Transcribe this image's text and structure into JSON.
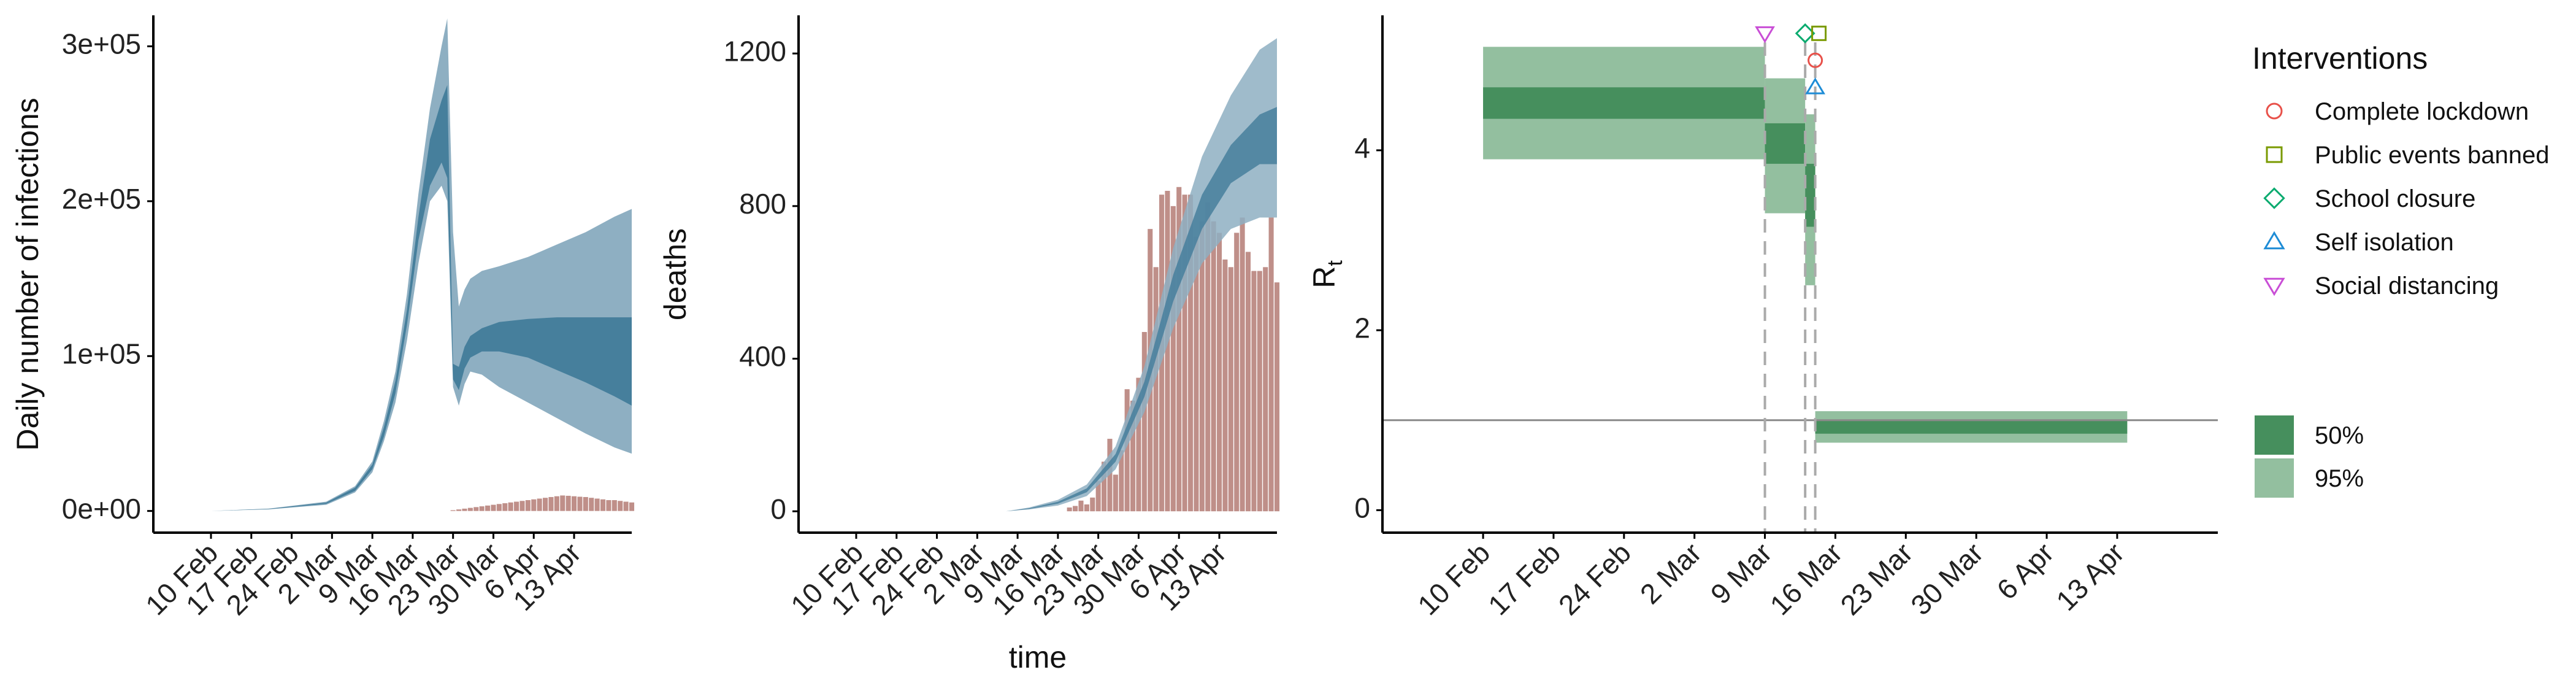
{
  "colors": {
    "infection_band_95": "#8eafc2",
    "infection_band_50": "#467f9c",
    "bars": "#bf8f89",
    "rt_band_95": "#93bf9f",
    "rt_band_50": "#468f5d",
    "marker_lockdown": "#e8514a",
    "marker_public_events": "#7a9a01",
    "marker_school": "#0aab6f",
    "marker_self_isolation": "#1e8cd6",
    "marker_social_distancing": "#c94ed6"
  },
  "chart_data": [
    {
      "type": "area",
      "ylabel": "Daily number of infections",
      "xlabel": "",
      "x_ticks": [
        "10 Feb",
        "17 Feb",
        "24 Feb",
        "2 Mar",
        "9 Mar",
        "16 Mar",
        "23 Mar",
        "30 Mar",
        "6 Apr",
        "13 Apr"
      ],
      "x_range": [
        -10,
        73
      ],
      "y_ticks": [
        "0e+00",
        "1e+05",
        "2e+05",
        "3e+05"
      ],
      "y_tick_values": [
        0,
        100000,
        200000,
        300000
      ],
      "ylim": [
        -14000,
        320000
      ],
      "bands": {
        "x": [
          0,
          10,
          20,
          25,
          28,
          30,
          32,
          34,
          36,
          38,
          40,
          41,
          42,
          43,
          44,
          45,
          47,
          50,
          55,
          60,
          65,
          70,
          73
        ],
        "lower95": [
          0,
          1000,
          4000,
          12000,
          25000,
          45000,
          70000,
          110000,
          160000,
          200000,
          210000,
          200000,
          80000,
          68000,
          82000,
          90000,
          88000,
          80000,
          70000,
          60000,
          50000,
          41000,
          37000
        ],
        "upper95": [
          0,
          1500,
          6000,
          16000,
          32000,
          58000,
          90000,
          140000,
          205000,
          260000,
          300000,
          318000,
          180000,
          132000,
          143000,
          150000,
          155000,
          158000,
          164000,
          172000,
          180000,
          190000,
          195000
        ],
        "lower50": [
          0,
          1200,
          4600,
          13000,
          27000,
          48000,
          76000,
          120000,
          175000,
          210000,
          225000,
          215000,
          85000,
          78000,
          92000,
          99000,
          103000,
          103000,
          99000,
          91000,
          83000,
          74000,
          68000
        ],
        "upper50": [
          0,
          1400,
          5400,
          15000,
          30000,
          54000,
          84000,
          130000,
          190000,
          240000,
          265000,
          275000,
          95000,
          93000,
          106000,
          113000,
          118000,
          122000,
          124000,
          125000,
          125000,
          125000,
          125000
        ]
      },
      "bars": {
        "x": [
          42,
          43,
          44,
          45,
          46,
          47,
          48,
          49,
          50,
          51,
          52,
          53,
          54,
          55,
          56,
          57,
          58,
          59,
          60,
          61,
          62,
          63,
          64,
          65,
          66,
          67,
          68,
          69,
          70,
          71,
          72,
          73
        ],
        "values": [
          500,
          1000,
          1500,
          2000,
          2500,
          3000,
          3500,
          4000,
          4500,
          5000,
          5500,
          6000,
          6500,
          7000,
          7500,
          8000,
          8500,
          9000,
          9500,
          10000,
          9800,
          9500,
          9200,
          9000,
          8500,
          8000,
          7500,
          7000,
          7000,
          6500,
          6000,
          5500
        ]
      }
    },
    {
      "type": "bar",
      "ylabel": "deaths",
      "xlabel": "time",
      "x_ticks": [
        "10 Feb",
        "17 Feb",
        "24 Feb",
        "2 Mar",
        "9 Mar",
        "16 Mar",
        "23 Mar",
        "30 Mar",
        "6 Apr",
        "13 Apr"
      ],
      "x_range": [
        -10,
        73
      ],
      "y_ticks": [
        "0",
        "400",
        "800",
        "1200"
      ],
      "y_tick_values": [
        0,
        400,
        800,
        1200
      ],
      "ylim": [
        -56,
        1300
      ],
      "bands": {
        "x": [
          26,
          30,
          35,
          40,
          45,
          50,
          55,
          60,
          65,
          70,
          73
        ],
        "lower95": [
          0,
          5,
          15,
          40,
          110,
          260,
          480,
          650,
          740,
          770,
          770
        ],
        "upper95": [
          0,
          10,
          30,
          70,
          170,
          380,
          690,
          930,
          1090,
          1210,
          1240
        ],
        "lower50": [
          0,
          6,
          20,
          50,
          130,
          300,
          550,
          740,
          860,
          910,
          910
        ],
        "upper50": [
          0,
          8,
          25,
          60,
          150,
          340,
          620,
          830,
          960,
          1040,
          1060
        ]
      },
      "bars": {
        "x": [
          37,
          38,
          39,
          40,
          41,
          42,
          43,
          44,
          45,
          46,
          47,
          48,
          49,
          50,
          51,
          52,
          53,
          54,
          55,
          56,
          57,
          58,
          59,
          60,
          61,
          62,
          63,
          64,
          65,
          66,
          67,
          68,
          69,
          70,
          71,
          72,
          73
        ],
        "values": [
          10,
          14,
          28,
          18,
          36,
          80,
          130,
          190,
          96,
          160,
          320,
          290,
          350,
          470,
          740,
          640,
          830,
          840,
          800,
          850,
          830,
          830,
          720,
          760,
          810,
          760,
          730,
          660,
          640,
          730,
          770,
          680,
          630,
          630,
          640,
          770,
          600
        ]
      }
    },
    {
      "type": "area",
      "ylabel": "R",
      "ylabel_subscript": "t",
      "xlabel": "",
      "x_ticks": [
        "10 Feb",
        "17 Feb",
        "24 Feb",
        "2 Mar",
        "9 Mar",
        "16 Mar",
        "23 Mar",
        "30 Mar",
        "6 Apr",
        "13 Apr"
      ],
      "x_range": [
        -10,
        73
      ],
      "y_ticks": [
        "0",
        "2",
        "4"
      ],
      "y_tick_values": [
        0,
        2,
        4
      ],
      "ylim": [
        -0.25,
        5.5
      ],
      "reference_line": 1,
      "steps": [
        {
          "x0": 0,
          "x1": 28,
          "lower95": 3.9,
          "upper95": 5.15,
          "lower50": 4.35,
          "upper50": 4.7
        },
        {
          "x0": 28,
          "x1": 32,
          "lower95": 3.3,
          "upper95": 4.8,
          "lower50": 3.85,
          "upper50": 4.3
        },
        {
          "x0": 32,
          "x1": 33,
          "lower95": 2.5,
          "upper95": 4.4,
          "lower50": 3.15,
          "upper50": 3.85
        },
        {
          "x0": 33,
          "x1": 64,
          "lower95": 0.75,
          "upper95": 1.1,
          "lower50": 0.85,
          "upper50": 1.0
        }
      ],
      "intervention_lines_x": [
        28,
        32,
        33
      ],
      "markers": [
        {
          "label": "Social distancing",
          "shape": "triangle-down",
          "x": 28,
          "y": 5.3
        },
        {
          "label": "School closure",
          "shape": "diamond",
          "x": 32,
          "y": 5.3
        },
        {
          "label": "Public events banned",
          "shape": "square",
          "x": 33,
          "y": 5.3
        },
        {
          "label": "Complete lockdown",
          "shape": "circle",
          "x": 33,
          "y": 5.0
        },
        {
          "label": "Self isolation",
          "shape": "triangle-up",
          "x": 33,
          "y": 4.7
        }
      ],
      "legend_title": "Interventions",
      "legend_entries": [
        {
          "label": "Complete lockdown",
          "shape": "circle"
        },
        {
          "label": "Public events banned",
          "shape": "square"
        },
        {
          "label": "School closure",
          "shape": "diamond"
        },
        {
          "label": "Self isolation",
          "shape": "triangle-up"
        },
        {
          "label": "Social distancing",
          "shape": "triangle-down"
        }
      ],
      "band_legend": [
        {
          "label": "50%"
        },
        {
          "label": "95%"
        }
      ]
    }
  ]
}
